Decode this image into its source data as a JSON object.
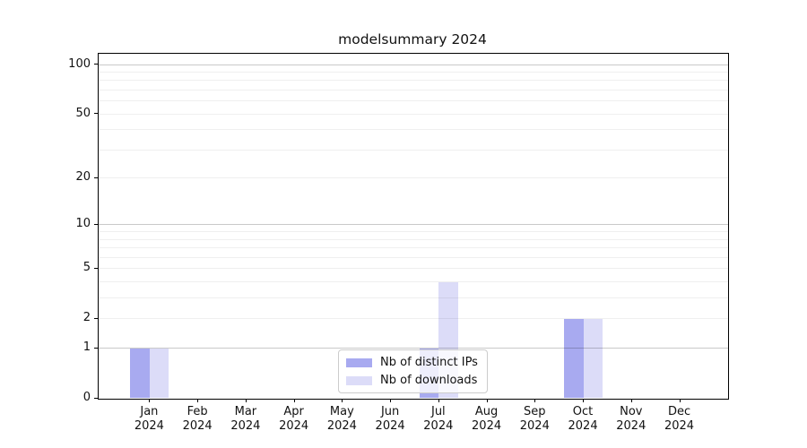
{
  "chart_data": {
    "type": "bar",
    "title": "modelsummary 2024",
    "categories": [
      "Jan",
      "Feb",
      "Mar",
      "Apr",
      "May",
      "Jun",
      "Jul",
      "Aug",
      "Sep",
      "Oct",
      "Nov",
      "Dec"
    ],
    "year_label": "2024",
    "series": [
      {
        "name": "Nb of distinct IPs",
        "color": "#a8aaf0",
        "values": [
          1,
          0,
          0,
          0,
          0,
          0,
          1,
          0,
          0,
          2,
          0,
          0
        ]
      },
      {
        "name": "Nb of downloads",
        "color": "#dcdcf8",
        "values": [
          1,
          0,
          0,
          0,
          0,
          0,
          4,
          0,
          0,
          2,
          0,
          0
        ]
      }
    ],
    "xlabel": "",
    "ylabel": "",
    "yscale": "log1p",
    "ylim": [
      0,
      116.3
    ],
    "y_ticks": [
      0,
      1,
      2,
      5,
      10,
      20,
      50,
      100
    ],
    "grid": {
      "major_values": [
        1,
        10,
        100
      ],
      "minor_values": [
        2,
        3,
        4,
        5,
        6,
        7,
        8,
        9,
        20,
        30,
        40,
        50,
        60,
        70,
        80,
        90
      ],
      "major_color": "#c9c9c9",
      "minor_color": "#efefef"
    },
    "legend_position": "lower center"
  }
}
